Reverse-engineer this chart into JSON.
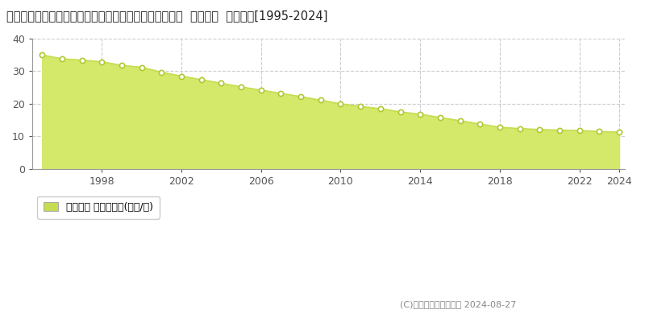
{
  "title": "新潟県西蒲原郡弥彦村大字弥彦字大石原２９３４番１外  地価公示  地価推移[1995-2024]",
  "years": [
    1995,
    1996,
    1997,
    1998,
    1999,
    2000,
    2001,
    2002,
    2003,
    2004,
    2005,
    2006,
    2007,
    2008,
    2009,
    2010,
    2011,
    2012,
    2013,
    2014,
    2015,
    2016,
    2017,
    2018,
    2019,
    2020,
    2021,
    2022,
    2023,
    2024
  ],
  "values": [
    35.0,
    33.8,
    33.4,
    32.9,
    31.8,
    31.2,
    29.7,
    28.5,
    27.4,
    26.3,
    25.2,
    24.2,
    23.2,
    22.2,
    21.1,
    20.0,
    19.2,
    18.5,
    17.5,
    16.8,
    15.8,
    14.8,
    13.8,
    12.8,
    12.4,
    12.1,
    11.9,
    11.8,
    11.5,
    11.3
  ],
  "fill_color": "#d4e86a",
  "line_color": "#c8dc50",
  "marker_facecolor": "#ffffff",
  "marker_edgecolor": "#b0c832",
  "bg_color": "#ffffff",
  "grid_color": "#cccccc",
  "title_fontsize": 10.5,
  "tick_fontsize": 9,
  "legend_label": "地価公示 平均嵪単価(万円/嵪)",
  "legend_square_color": "#c8dc50",
  "copyright_text": "(C)土地価格ドットコム 2024-08-27",
  "ylim": [
    0,
    40
  ],
  "yticks": [
    0,
    10,
    20,
    30,
    40
  ],
  "xticks": [
    1998,
    2002,
    2006,
    2010,
    2014,
    2018,
    2022,
    2024
  ]
}
